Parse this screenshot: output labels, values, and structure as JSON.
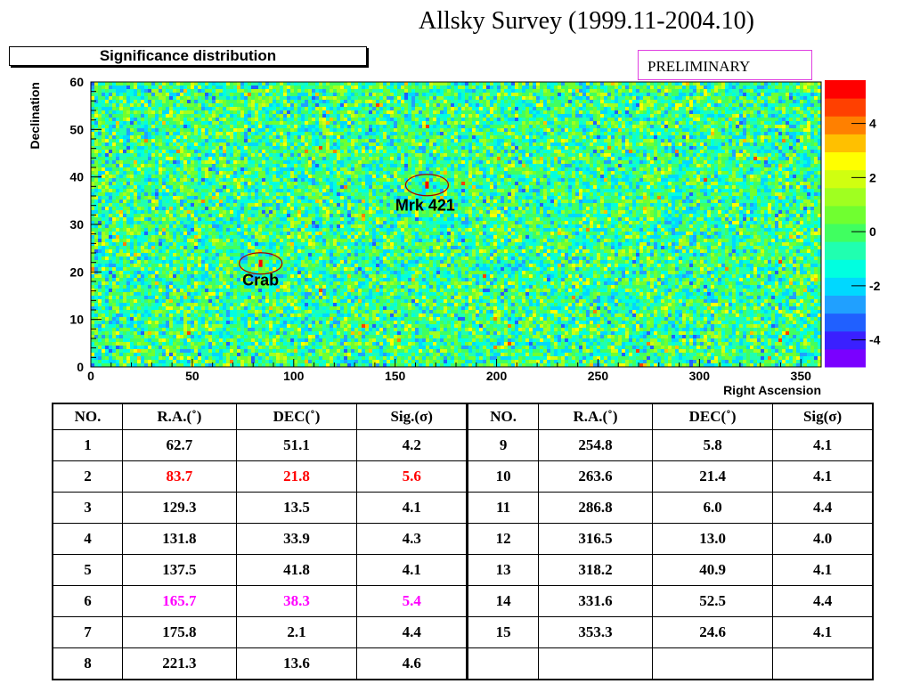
{
  "title": "Allsky Survey (1999.11-2004.10)",
  "hist_label": "Significance distribution",
  "preliminary": "PRELIMINARY",
  "chart_data": {
    "type": "heatmap",
    "xlabel": "Right Ascension",
    "ylabel": "Declination",
    "xlim": [
      0,
      360
    ],
    "ylim": [
      0,
      60
    ],
    "x_ticks": [
      0,
      50,
      100,
      150,
      200,
      250,
      300,
      350
    ],
    "y_ticks": [
      0,
      10,
      20,
      30,
      40,
      50,
      60
    ],
    "color_scale": {
      "min": -5,
      "max": 5.6,
      "ticks": [
        -4,
        -2,
        0,
        2,
        4
      ]
    },
    "palette": [
      "#7a00ff",
      "#3a20ff",
      "#2060ff",
      "#20a0ff",
      "#00d8ff",
      "#00ffe0",
      "#20ffb0",
      "#40ff60",
      "#70ff30",
      "#a0ff20",
      "#d0ff10",
      "#ffff00",
      "#ffc000",
      "#ff8000",
      "#ff4000",
      "#ff0000"
    ],
    "annotations": [
      {
        "label": "Crab",
        "ra": 83.7,
        "dec": 21.8
      },
      {
        "label": "Mrk 421",
        "ra": 165.7,
        "dec": 38.3
      }
    ]
  },
  "table": {
    "headers": [
      "NO.",
      "R.A.(˚)",
      "DEC(˚)",
      "Sig.(σ)",
      "NO.",
      "R.A.(˚)",
      "DEC(˚)",
      "Sig(σ)"
    ],
    "rows": [
      [
        [
          "1",
          "62.7",
          "51.1",
          "4.2"
        ],
        [
          "9",
          "254.8",
          "5.8",
          "4.1"
        ]
      ],
      [
        [
          "2",
          "83.7",
          "21.8",
          "5.6"
        ],
        [
          "10",
          "263.6",
          "21.4",
          "4.1"
        ]
      ],
      [
        [
          "3",
          "129.3",
          "13.5",
          "4.1"
        ],
        [
          "11",
          "286.8",
          "6.0",
          "4.4"
        ]
      ],
      [
        [
          "4",
          "131.8",
          "33.9",
          "4.3"
        ],
        [
          "12",
          "316.5",
          "13.0",
          "4.0"
        ]
      ],
      [
        [
          "5",
          "137.5",
          "41.8",
          "4.1"
        ],
        [
          "13",
          "318.2",
          "40.9",
          "4.1"
        ]
      ],
      [
        [
          "6",
          "165.7",
          "38.3",
          "5.4"
        ],
        [
          "14",
          "331.6",
          "52.5",
          "4.4"
        ]
      ],
      [
        [
          "7",
          "175.8",
          "2.1",
          "4.4"
        ],
        [
          "15",
          "353.3",
          "24.6",
          "4.1"
        ]
      ],
      [
        [
          "8",
          "221.3",
          "13.6",
          "4.6"
        ],
        [
          "",
          "",
          "",
          ""
        ]
      ]
    ],
    "highlight": {
      "1": "#ff0000",
      "5": "#ff00ff"
    }
  }
}
